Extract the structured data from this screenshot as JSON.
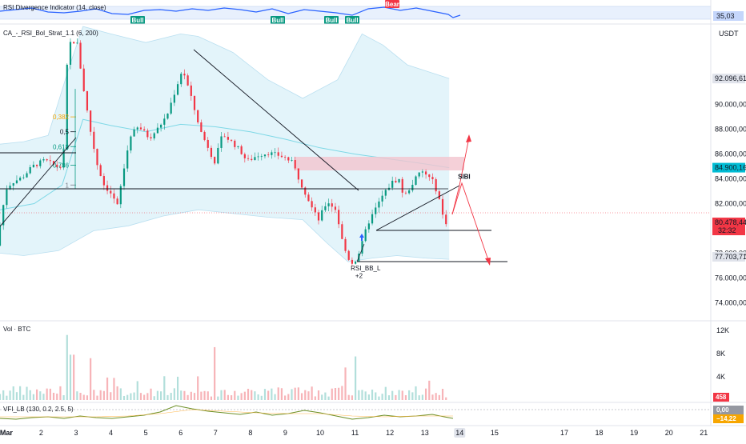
{
  "chart_data": {
    "type": "candlestick",
    "symbol_quote": "USDT",
    "price_axis": {
      "range": [
        72600,
        96500
      ],
      "ticks": [
        {
          "label": "92.096,61",
          "value": 92096.61,
          "badge": true,
          "badge_color": "#e0e3eb",
          "text_color": "#131722"
        },
        {
          "label": "90.000,00",
          "value": 90000
        },
        {
          "label": "88.000,00",
          "value": 88000
        },
        {
          "label": "86.000,00",
          "value": 86000
        },
        {
          "label": "84.900,16",
          "value": 84900.16,
          "badge": true,
          "badge_color": "#00bcd4",
          "text_color": "#131722"
        },
        {
          "label": "84.000,00",
          "value": 84000
        },
        {
          "label": "82.000,00",
          "value": 82000
        },
        {
          "label": "80.478,44",
          "value": 80478.44,
          "badge": true,
          "badge_color": "#f23645",
          "text_color": "#ffffff",
          "sub": "32:32"
        },
        {
          "label": "78.000,00",
          "value": 78000
        },
        {
          "label": "77.703,71",
          "value": 77703.71,
          "badge": true,
          "badge_color": "#e0e3eb",
          "text_color": "#131722"
        },
        {
          "label": "76.000,00",
          "value": 76000
        },
        {
          "label": "74.000,00",
          "value": 74000
        }
      ]
    },
    "x_axis": {
      "range": [
        0.82,
        21.2
      ],
      "ticks": [
        {
          "label": "Mar",
          "value": 1,
          "bold": true
        },
        {
          "label": "2",
          "value": 2
        },
        {
          "label": "3",
          "value": 3
        },
        {
          "label": "4",
          "value": 4
        },
        {
          "label": "5",
          "value": 5
        },
        {
          "label": "6",
          "value": 6
        },
        {
          "label": "7",
          "value": 7
        },
        {
          "label": "8",
          "value": 8
        },
        {
          "label": "9",
          "value": 9
        },
        {
          "label": "10",
          "value": 10
        },
        {
          "label": "11",
          "value": 11
        },
        {
          "label": "12",
          "value": 12
        },
        {
          "label": "13",
          "value": 13
        },
        {
          "label": "14",
          "value": 14,
          "highlight": true
        },
        {
          "label": "15",
          "value": 15
        },
        {
          "label": "17",
          "value": 17
        },
        {
          "label": "18",
          "value": 18
        },
        {
          "label": "19",
          "value": 19
        },
        {
          "label": "20",
          "value": 20
        },
        {
          "label": "21",
          "value": 21
        }
      ]
    },
    "price_keypoints": [
      [
        0.82,
        78600
      ],
      [
        1.0,
        81700
      ],
      [
        1.1,
        83200
      ],
      [
        1.25,
        83700
      ],
      [
        1.55,
        84100
      ],
      [
        1.85,
        85000
      ],
      [
        2.2,
        85500
      ],
      [
        2.6,
        84900
      ],
      [
        2.73,
        85100
      ],
      [
        2.8,
        91000
      ],
      [
        2.88,
        95200
      ],
      [
        2.98,
        94800
      ],
      [
        3.1,
        95400
      ],
      [
        3.3,
        91500
      ],
      [
        3.5,
        88000
      ],
      [
        3.7,
        85200
      ],
      [
        3.9,
        83500
      ],
      [
        4.1,
        82800
      ],
      [
        4.28,
        81800
      ],
      [
        4.45,
        84500
      ],
      [
        4.65,
        87500
      ],
      [
        4.9,
        88200
      ],
      [
        5.2,
        87300
      ],
      [
        5.4,
        87900
      ],
      [
        5.7,
        89100
      ],
      [
        5.95,
        91200
      ],
      [
        6.15,
        92900
      ],
      [
        6.3,
        91500
      ],
      [
        6.5,
        89500
      ],
      [
        6.7,
        87600
      ],
      [
        6.95,
        86200
      ],
      [
        7.05,
        85200
      ],
      [
        7.3,
        87600
      ],
      [
        7.55,
        87000
      ],
      [
        7.8,
        86300
      ],
      [
        8.0,
        85400
      ],
      [
        8.3,
        85900
      ],
      [
        8.6,
        86100
      ],
      [
        8.9,
        85900
      ],
      [
        9.1,
        85700
      ],
      [
        9.3,
        85300
      ],
      [
        9.5,
        83900
      ],
      [
        9.7,
        82700
      ],
      [
        9.9,
        81400
      ],
      [
        10.05,
        80700
      ],
      [
        10.3,
        82200
      ],
      [
        10.55,
        81500
      ],
      [
        10.75,
        78700
      ],
      [
        10.9,
        77600
      ],
      [
        11.05,
        77100
      ],
      [
        11.25,
        78300
      ],
      [
        11.45,
        80300
      ],
      [
        11.65,
        81400
      ],
      [
        11.9,
        82700
      ],
      [
        12.15,
        83700
      ],
      [
        12.35,
        84000
      ],
      [
        12.5,
        82500
      ],
      [
        12.65,
        83200
      ],
      [
        12.85,
        84100
      ],
      [
        13.0,
        84600
      ],
      [
        13.15,
        84300
      ],
      [
        13.35,
        83700
      ],
      [
        13.5,
        82500
      ],
      [
        13.62,
        80900
      ],
      [
        13.7,
        80480
      ]
    ],
    "bollinger_upper": [
      [
        0.82,
        86800
      ],
      [
        1.5,
        87000
      ],
      [
        2.2,
        87500
      ],
      [
        2.8,
        93000
      ],
      [
        3.2,
        96300
      ],
      [
        4.0,
        95700
      ],
      [
        5.0,
        95000
      ],
      [
        6.0,
        95700
      ],
      [
        6.5,
        95500
      ],
      [
        7.5,
        94200
      ],
      [
        8.5,
        92000
      ],
      [
        9.5,
        90500
      ],
      [
        10.5,
        92000
      ],
      [
        11.2,
        95700
      ],
      [
        11.8,
        94800
      ],
      [
        12.5,
        93200
      ],
      [
        13.7,
        92100
      ]
    ],
    "bollinger_basis": [
      [
        0.82,
        81500
      ],
      [
        1.8,
        82000
      ],
      [
        2.6,
        83500
      ],
      [
        3.2,
        88800
      ],
      [
        4.0,
        88300
      ],
      [
        5.0,
        87800
      ],
      [
        6.0,
        88400
      ],
      [
        7.0,
        88200
      ],
      [
        8.0,
        87800
      ],
      [
        9.0,
        87200
      ],
      [
        10.0,
        86500
      ],
      [
        11.0,
        86000
      ],
      [
        12.0,
        85600
      ],
      [
        13.0,
        85200
      ],
      [
        13.7,
        84900
      ]
    ],
    "bollinger_lower": [
      [
        0.82,
        78000
      ],
      [
        1.5,
        77800
      ],
      [
        2.5,
        78200
      ],
      [
        3.5,
        79800
      ],
      [
        4.5,
        80200
      ],
      [
        5.5,
        81000
      ],
      [
        6.5,
        81500
      ],
      [
        7.5,
        81200
      ],
      [
        8.5,
        80900
      ],
      [
        9.5,
        80700
      ],
      [
        10.2,
        78800
      ],
      [
        10.8,
        77300
      ],
      [
        11.5,
        77600
      ],
      [
        12.2,
        77800
      ],
      [
        13.0,
        77600
      ],
      [
        13.7,
        77500
      ]
    ],
    "indicator_label": "CA_-_RSI_Bol_Strat_1.1 (6, 200)",
    "fib_levels": [
      {
        "label": "0,382",
        "value": 89000,
        "color": "#f7a600"
      },
      {
        "label": "0,5",
        "value": 87800,
        "color": "#131722"
      },
      {
        "label": "0,618",
        "value": 86600,
        "color": "#089981"
      },
      {
        "label": "0,786",
        "value": 85100,
        "color": "#089981"
      },
      {
        "label": "1",
        "value": 83500,
        "color": "#787b86"
      }
    ],
    "annotations": [
      {
        "label": "SIBI",
        "x": 13.95,
        "y": 84000
      },
      {
        "label": "RSI_BB_L",
        "x": 11.15,
        "y": 76600
      },
      {
        "label": "+2",
        "x": 11.1,
        "y": 76000
      }
    ],
    "volume_pane": {
      "label": "Vol · BTC",
      "range": [
        0,
        13500
      ],
      "ticks": [
        {
          "label": "12K",
          "value": 12000
        },
        {
          "label": "8K",
          "value": 8000
        },
        {
          "label": "4K",
          "value": 4000
        }
      ],
      "last": {
        "label": "458",
        "value": 458
      }
    },
    "rsi_pane": {
      "label": "RSI Divergence Indicator (14, close)",
      "value_label": "35,03",
      "signals": [
        "Bull",
        "Bull",
        "Bull",
        "Bull",
        "Bear"
      ]
    },
    "vfi_pane": {
      "label": "VFI_LB (130, 0.2, 2.5, 5)",
      "values": [
        "0,00",
        "−14,22"
      ]
    }
  }
}
